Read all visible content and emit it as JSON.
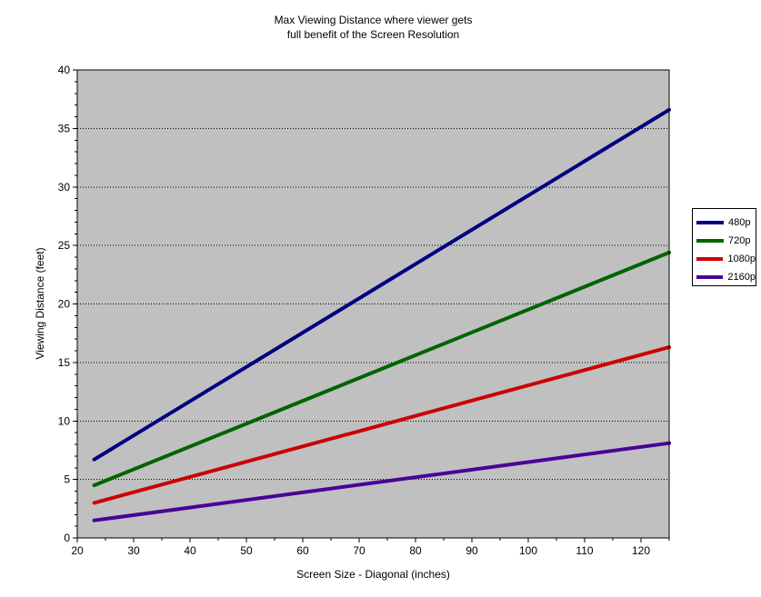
{
  "chart_data": {
    "type": "line",
    "title": "Max Viewing Distance where viewer gets",
    "subtitle": "full benefit of the Screen Resolution",
    "xlabel": "Screen Size - Diagonal (inches)",
    "ylabel": "Viewing Distance (feet)",
    "xlim": [
      20,
      125
    ],
    "ylim": [
      0,
      40
    ],
    "x_ticks": [
      "20",
      "30",
      "40",
      "50",
      "60",
      "70",
      "80",
      "90",
      "100",
      "110",
      "120"
    ],
    "y_ticks": [
      "0",
      "5",
      "10",
      "15",
      "20",
      "25",
      "30",
      "35",
      "40"
    ],
    "grid": "horizontal dotted",
    "background": "#c0c0c0",
    "legend_position": "right",
    "series": [
      {
        "name": "480p",
        "color": "#000080",
        "x": [
          23,
          125
        ],
        "y": [
          6.7,
          36.6
        ]
      },
      {
        "name": "720p",
        "color": "#006400",
        "x": [
          23,
          125
        ],
        "y": [
          4.5,
          24.4
        ]
      },
      {
        "name": "1080p",
        "color": "#cc0000",
        "x": [
          23,
          125
        ],
        "y": [
          3.0,
          16.3
        ]
      },
      {
        "name": "2160p",
        "color": "#4b0096",
        "x": [
          23,
          125
        ],
        "y": [
          1.5,
          8.1
        ]
      }
    ]
  }
}
